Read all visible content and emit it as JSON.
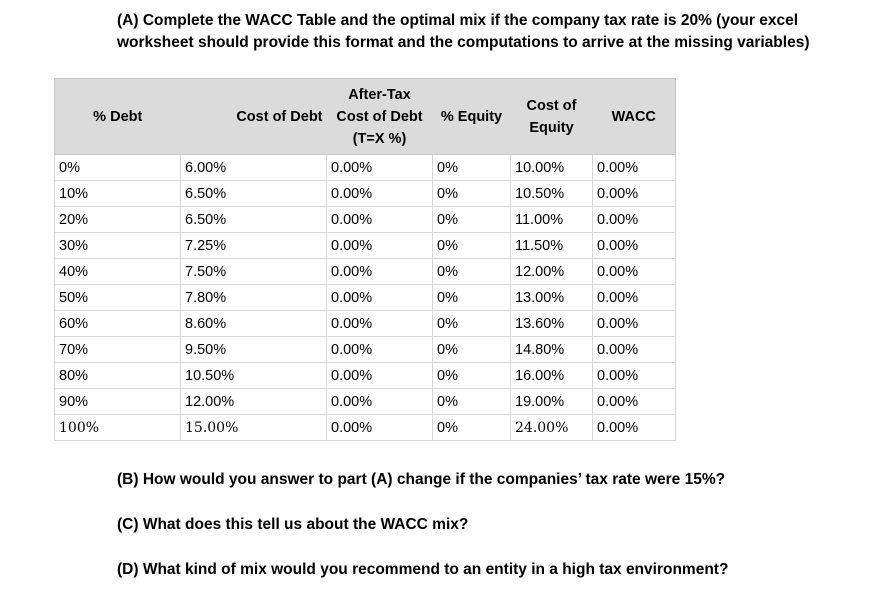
{
  "intro": {
    "line1": "(A) Complete the WACC Table and the optimal mix if the company tax rate is 20% (your excel",
    "line2": "worksheet should provide this format and the computations to arrive at the missing variables)"
  },
  "table": {
    "headers": {
      "debt_pct": "% Debt",
      "cost_of_debt": "Cost of Debt",
      "after_tax_1": "After-Tax",
      "after_tax_2": "Cost of Debt",
      "after_tax_3": "(T=X %)",
      "equity_pct": "% Equity",
      "cost_of_equity_1": "Cost of",
      "cost_of_equity_2": "Equity",
      "wacc": "WACC"
    },
    "rows": [
      [
        "0%",
        "6.00%",
        "0.00%",
        "0%",
        "10.00%",
        "0.00%"
      ],
      [
        "10%",
        "6.50%",
        "0.00%",
        "0%",
        "10.50%",
        "0.00%"
      ],
      [
        "20%",
        "6.50%",
        "0.00%",
        "0%",
        "11.00%",
        "0.00%"
      ],
      [
        "30%",
        "7.25%",
        "0.00%",
        "0%",
        "11.50%",
        "0.00%"
      ],
      [
        "40%",
        "7.50%",
        "0.00%",
        "0%",
        "12.00%",
        "0.00%"
      ],
      [
        "50%",
        "7.80%",
        "0.00%",
        "0%",
        "13.00%",
        "0.00%"
      ],
      [
        "60%",
        "8.60%",
        "0.00%",
        "0%",
        "13.60%",
        "0.00%"
      ],
      [
        "70%",
        "9.50%",
        "0.00%",
        "0%",
        "14.80%",
        "0.00%"
      ],
      [
        "80%",
        "10.50%",
        "0.00%",
        "0%",
        "16.00%",
        "0.00%"
      ],
      [
        "90%",
        "12.00%",
        "0.00%",
        "0%",
        "19.00%",
        "0.00%"
      ],
      [
        "100%",
        "15.00%",
        "0.00%",
        "0%",
        "24.00%",
        "0.00%"
      ]
    ]
  },
  "questions": {
    "b": "(B) How would you answer to part (A) change if the companies’ tax rate were 15%?",
    "c": "(C) What does this tell us about the WACC mix?",
    "d": "(D) What kind of mix would you recommend to an entity in a high tax environment?"
  }
}
